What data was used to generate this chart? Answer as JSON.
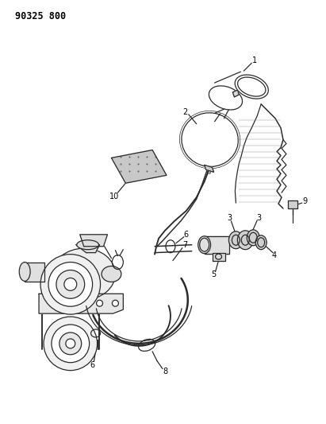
{
  "title_code": "90325 800",
  "bg": "#ffffff",
  "lc": "#2a2a2a",
  "tc": "#000000",
  "fig_w": 4.11,
  "fig_h": 5.33,
  "dpi": 100
}
